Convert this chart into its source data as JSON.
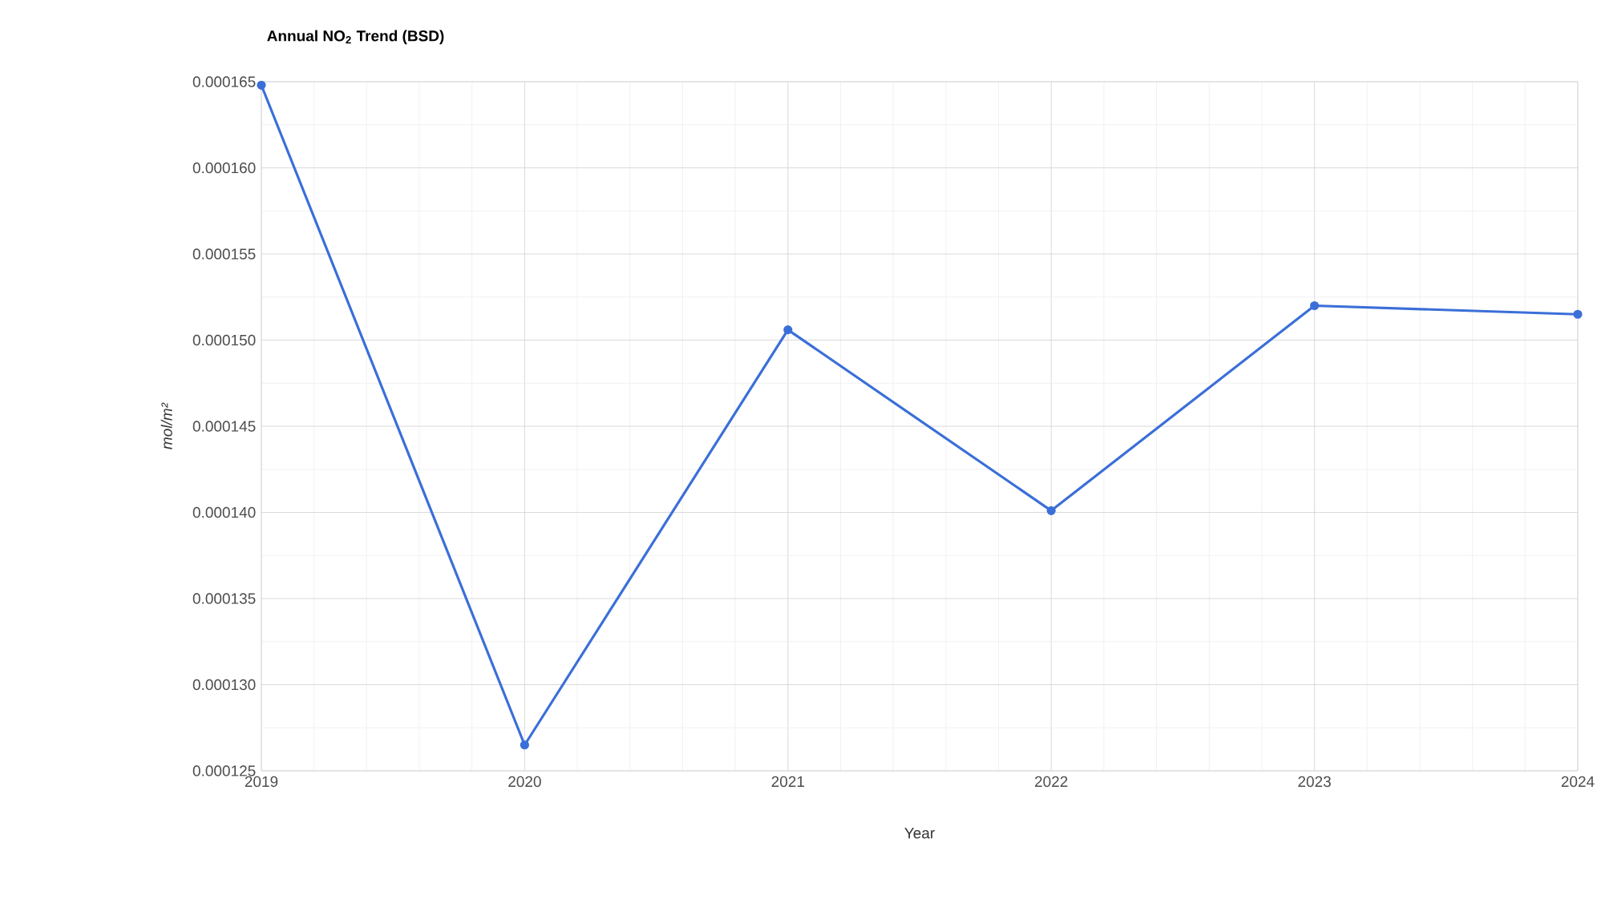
{
  "chart_data": {
    "type": "line",
    "title": "Annual NO$_{2}$ Trend (BSD)",
    "xlabel": "Year",
    "ylabel": "mol/m²",
    "x": [
      2019,
      2020,
      2021,
      2022,
      2023,
      2024
    ],
    "series": [
      {
        "color": "#3b6fd8",
        "values": [
          0.0001648,
          0.0001265,
          0.0001506,
          0.0001401,
          0.000152,
          0.0001515
        ]
      }
    ],
    "xlim": [
      2019,
      2024
    ],
    "xticks": [
      2019,
      2020,
      2021,
      2022,
      2023,
      2024
    ],
    "ylim": [
      0.000125,
      0.000165
    ],
    "yticks": [
      0.000125,
      {
        "value": 0.00013,
        "label": "0.000130"
      },
      0.000135,
      {
        "value": 0.00014,
        "label": "0.000140"
      },
      0.000145,
      {
        "value": 0.00015,
        "label": "0.000150"
      },
      0.000155,
      {
        "value": 0.00016,
        "label": "0.000160"
      },
      0.000165
    ],
    "grid": true,
    "marker": "circle",
    "line_style": "solid"
  }
}
